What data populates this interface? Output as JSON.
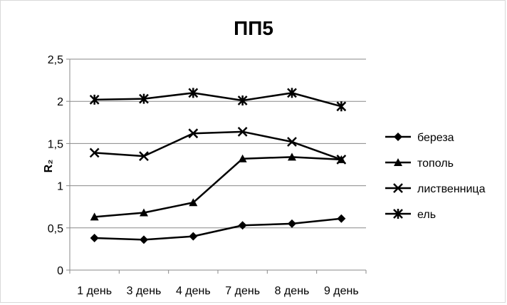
{
  "chart_data": {
    "type": "line",
    "title": "ПП5",
    "xlabel": "",
    "ylabel": "R₂",
    "categories": [
      "1 день",
      "3 день",
      "4 день",
      "7 день",
      "8 день",
      "9 день"
    ],
    "ylim": [
      0,
      2.5
    ],
    "yticks": [
      "0",
      "0,5",
      "1",
      "1,5",
      "2",
      "2,5"
    ],
    "ytick_values": [
      0,
      0.5,
      1,
      1.5,
      2,
      2.5
    ],
    "grid": true,
    "legend_position": "right",
    "series": [
      {
        "name": "береза",
        "marker": "diamond",
        "values": [
          0.38,
          0.36,
          0.4,
          0.53,
          0.55,
          0.61
        ]
      },
      {
        "name": "тополь",
        "marker": "triangle",
        "values": [
          0.63,
          0.68,
          0.8,
          1.32,
          1.34,
          1.31
        ]
      },
      {
        "name": "лиственница",
        "marker": "x",
        "values": [
          1.39,
          1.35,
          1.62,
          1.64,
          1.52,
          1.31
        ]
      },
      {
        "name": "ель",
        "marker": "star",
        "values": [
          2.02,
          2.03,
          2.1,
          2.01,
          2.1,
          1.94
        ]
      }
    ],
    "line_color": "#000000",
    "grid_color": "#888888"
  }
}
